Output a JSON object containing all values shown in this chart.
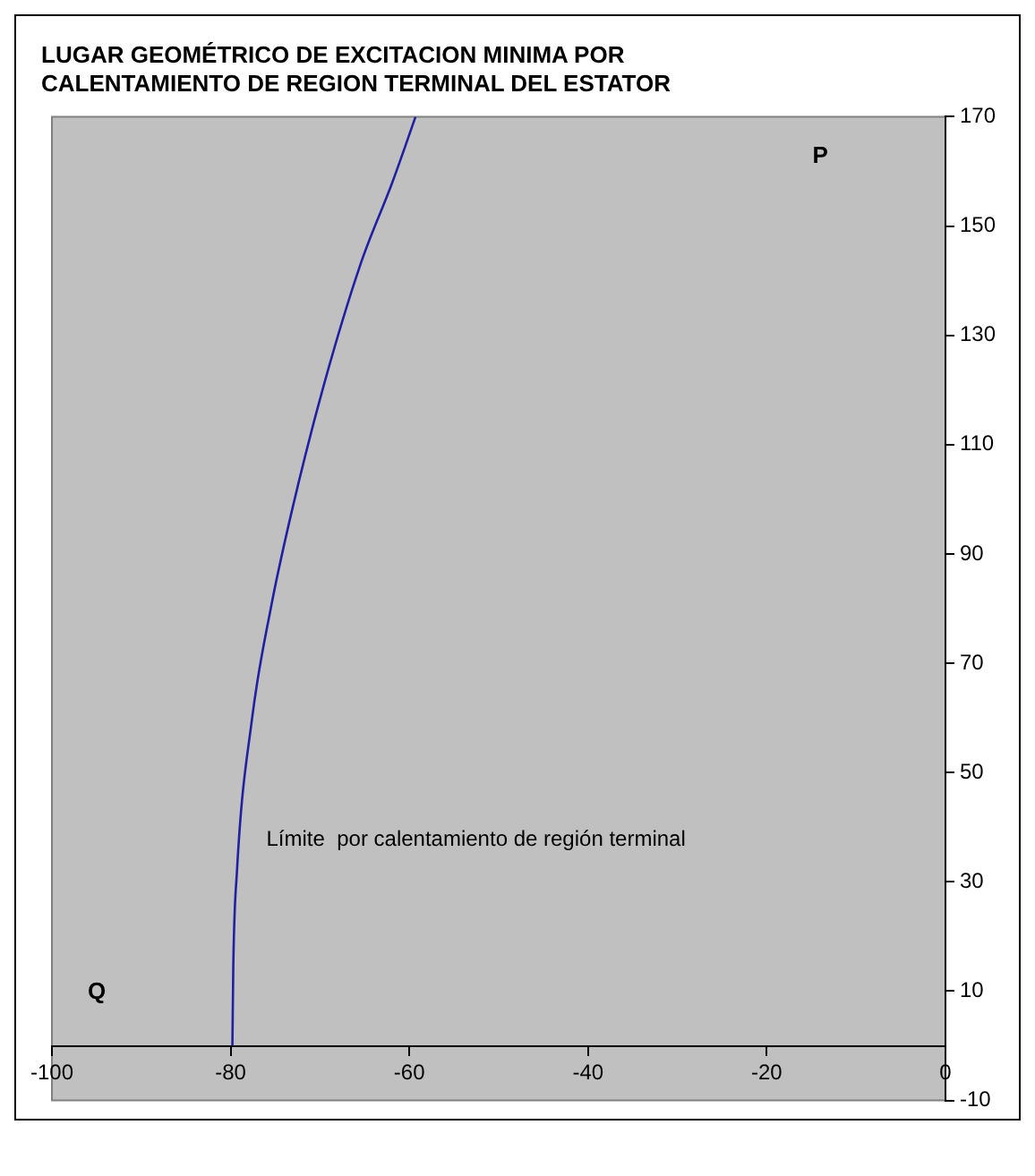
{
  "chart_data": {
    "type": "line",
    "title": "LUGAR GEOMÉTRICO DE EXCITACION MINIMA POR CALENTAMIENTO DE REGION TERMINAL DEL ESTATOR",
    "xlabel": "Q",
    "ylabel": "P",
    "annotations": [
      "Límite  por calentamiento de región terminal"
    ],
    "series": [
      {
        "color": "#2020a0",
        "x": [
          -79.8,
          -79.7,
          -79.3,
          -77.6,
          -75.5,
          -73.1,
          -69.6,
          -65.4,
          -61.9,
          -59.3
        ],
        "values": [
          0,
          14.8,
          31.7,
          59.9,
          80.1,
          98.2,
          120.7,
          143.3,
          158,
          170
        ]
      }
    ],
    "xlim": [
      -100,
      0
    ],
    "xticks": [
      -100,
      -80,
      -60,
      -40,
      -20,
      0
    ],
    "ylim": [
      -10,
      170
    ],
    "yticks": [
      -10,
      10,
      30,
      50,
      70,
      90,
      110,
      130,
      150,
      170
    ],
    "grid": false,
    "legend": false,
    "marker": "none",
    "line_style": "solid"
  }
}
